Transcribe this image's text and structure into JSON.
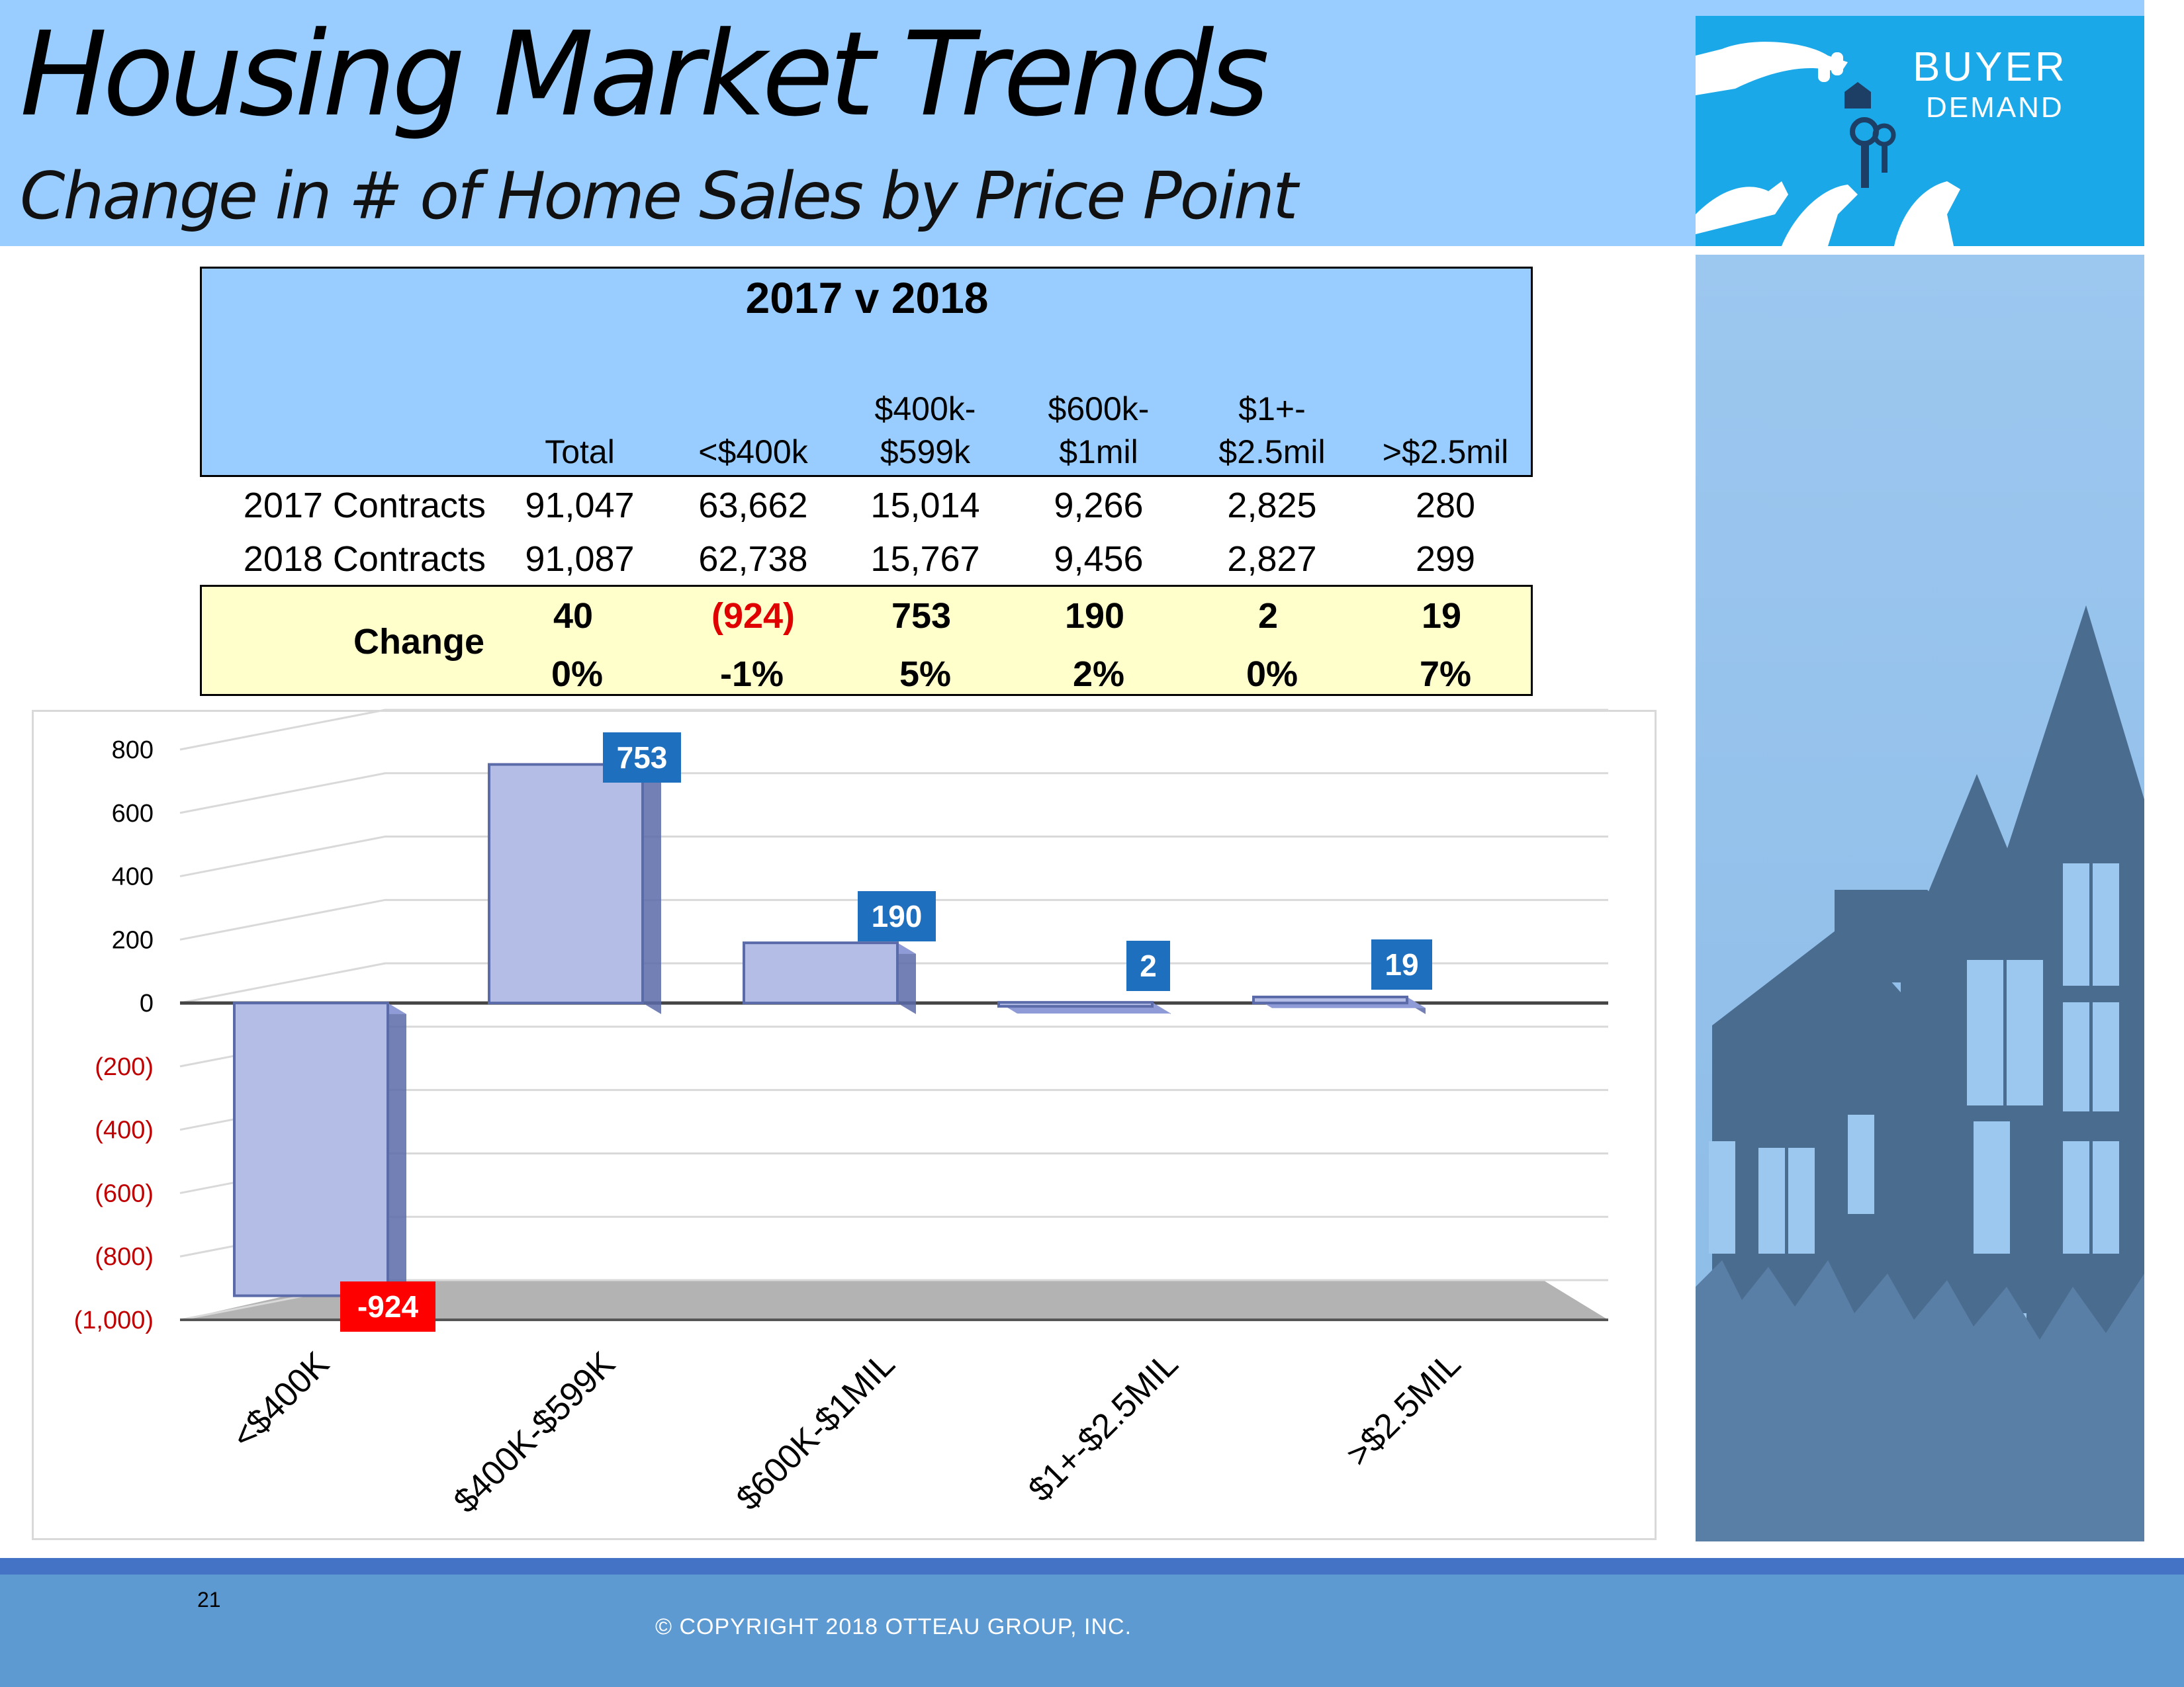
{
  "header": {
    "title": "Housing Market Trends",
    "subtitle": "Change in # of Home Sales by Price Point",
    "logo_line1": "BUYER",
    "logo_line2": "DEMAND"
  },
  "table": {
    "title": "2017 v 2018",
    "columns": [
      {
        "line1": "",
        "line2": "Total"
      },
      {
        "line1": "",
        "line2": "<$400k"
      },
      {
        "line1": "$400k-",
        "line2": "$599k"
      },
      {
        "line1": "$600k-",
        "line2": "$1mil"
      },
      {
        "line1": "$1+-",
        "line2": "$2.5mil"
      },
      {
        "line1": "",
        "line2": ">$2.5mil"
      }
    ],
    "rows": [
      {
        "label": "2017 Contracts",
        "values": [
          "91,047",
          "63,662",
          "15,014",
          "9,266",
          "2,825",
          "280"
        ]
      },
      {
        "label": "2018 Contracts",
        "values": [
          "91,087",
          "62,738",
          "15,767",
          "9,456",
          "2,827",
          "299"
        ]
      }
    ],
    "change": {
      "label": "Change",
      "counts": [
        "40",
        "(924)",
        "753",
        "190",
        "2",
        "19"
      ],
      "percents": [
        "0%",
        "-1%",
        "5%",
        "2%",
        "0%",
        "7%"
      ]
    },
    "colors": {
      "header_bg": "#99ccff",
      "change_bg": "#ffffcc",
      "negative": "#e00000"
    }
  },
  "chart_data": {
    "type": "bar",
    "categories": [
      "<$400K",
      "$400K-$599K",
      "$600K-$1MIL",
      "$1+-$2.5MIL",
      ">$2.5MIL"
    ],
    "values": [
      -924,
      753,
      190,
      2,
      19
    ],
    "data_labels": [
      "-924",
      "753",
      "190",
      "2",
      "19"
    ],
    "yticks": [
      "800",
      "600",
      "400",
      "200",
      "0",
      "(200)",
      "(400)",
      "(600)",
      "(800)",
      "(1,000)"
    ],
    "ylim": [
      -1000,
      800
    ],
    "title": "",
    "xlabel": "",
    "ylabel": "",
    "grid": true,
    "style": "3d",
    "colors": {
      "bar": "#b4bde6",
      "bar_dark": "#5b6aa8",
      "label_bg": "#1f6fbf",
      "negative_label_bg": "#ff0000",
      "negative_tick": "#c00000",
      "floor": "#b3b3b3"
    }
  },
  "footer": {
    "page_number": "21",
    "copyright": "© COPYRIGHT 2018 OTTEAU GROUP, INC."
  }
}
